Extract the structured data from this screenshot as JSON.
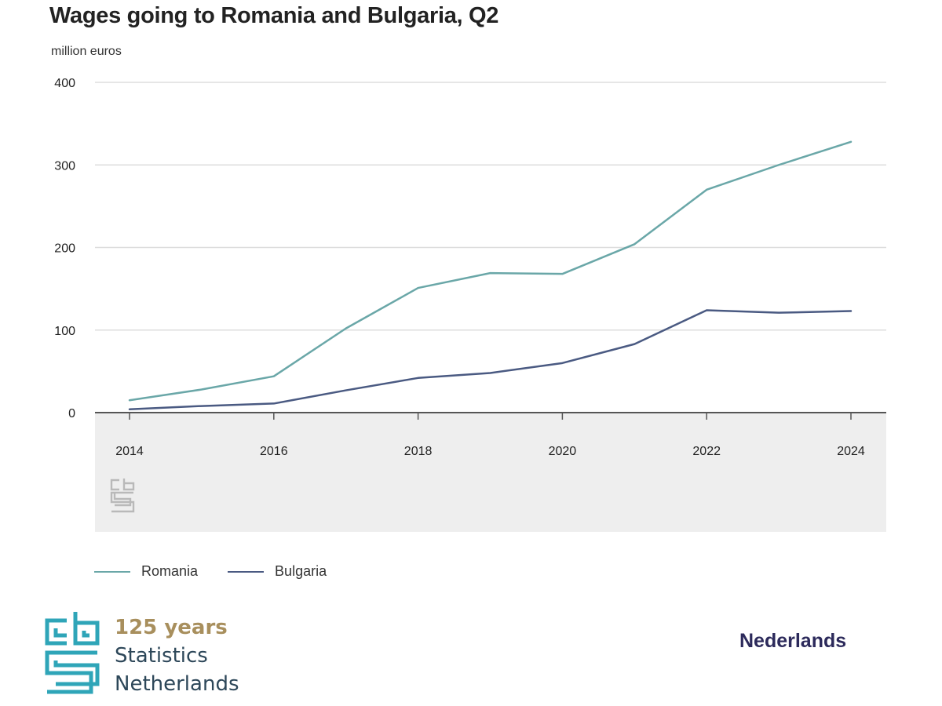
{
  "chart_data": {
    "type": "line",
    "title": "Wages going to Romania and Bulgaria, Q2",
    "ylabel": "million euros",
    "xlabel": "",
    "x": [
      2014,
      2015,
      2016,
      2017,
      2018,
      2019,
      2020,
      2021,
      2022,
      2023,
      2024
    ],
    "xticks": [
      "2014",
      "2016",
      "2018",
      "2020",
      "2022",
      "2024"
    ],
    "yticks": [
      "0",
      "100",
      "200",
      "300",
      "400"
    ],
    "ylim": [
      0,
      400
    ],
    "grid": true,
    "legend_position": "bottom-left",
    "series": [
      {
        "name": "Romania",
        "color": "#6aa7a8",
        "values": [
          15,
          28,
          44,
          102,
          151,
          169,
          168,
          204,
          270,
          300,
          328
        ]
      },
      {
        "name": "Bulgaria",
        "color": "#4a5a82",
        "values": [
          4,
          8,
          11,
          27,
          42,
          48,
          60,
          83,
          124,
          121,
          123
        ]
      }
    ]
  },
  "branding": {
    "logo_icon": "cbs-logo-icon",
    "years": "125 years",
    "line1": "Statistics",
    "line2": "Netherlands",
    "language_link": "Nederlands"
  },
  "colors": {
    "plot_background_bottom": "#eeeeee",
    "gridline": "#dddddd",
    "axis": "#555555",
    "brand": "#2d4759",
    "brand_accent": "#a88f5d"
  }
}
